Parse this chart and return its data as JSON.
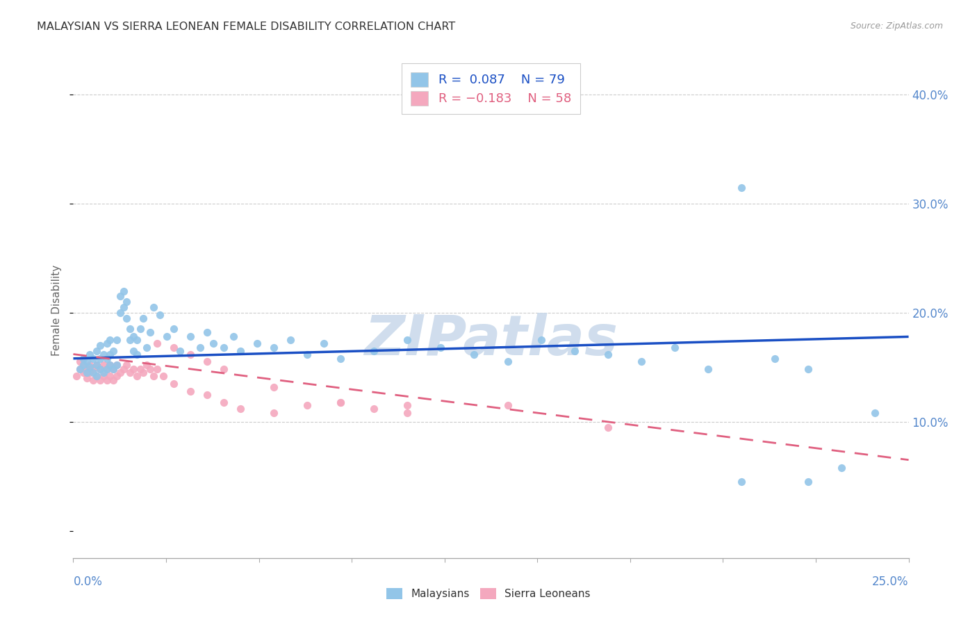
{
  "title": "MALAYSIAN VS SIERRA LEONEAN FEMALE DISABILITY CORRELATION CHART",
  "source": "Source: ZipAtlas.com",
  "ylabel": "Female Disability",
  "xlim": [
    0.0,
    0.25
  ],
  "ylim": [
    -0.025,
    0.43
  ],
  "blue_color": "#92C5E8",
  "pink_color": "#F4A8BE",
  "blue_line_color": "#1A4FC4",
  "pink_line_color": "#E06080",
  "grid_color": "#CCCCCC",
  "title_color": "#333333",
  "source_color": "#999999",
  "label_color": "#5588CC",
  "watermark_color": "#C8D8EA",
  "malaysians_x": [
    0.002,
    0.003,
    0.003,
    0.004,
    0.004,
    0.005,
    0.005,
    0.006,
    0.006,
    0.007,
    0.007,
    0.007,
    0.008,
    0.008,
    0.008,
    0.009,
    0.009,
    0.01,
    0.01,
    0.01,
    0.011,
    0.011,
    0.011,
    0.012,
    0.012,
    0.013,
    0.013,
    0.014,
    0.014,
    0.015,
    0.015,
    0.016,
    0.016,
    0.017,
    0.017,
    0.018,
    0.018,
    0.019,
    0.019,
    0.02,
    0.021,
    0.022,
    0.023,
    0.024,
    0.026,
    0.028,
    0.03,
    0.032,
    0.035,
    0.038,
    0.04,
    0.042,
    0.045,
    0.048,
    0.05,
    0.055,
    0.06,
    0.065,
    0.07,
    0.075,
    0.08,
    0.09,
    0.1,
    0.11,
    0.12,
    0.13,
    0.14,
    0.15,
    0.16,
    0.17,
    0.18,
    0.19,
    0.2,
    0.21,
    0.22,
    0.23,
    0.24,
    0.2,
    0.22
  ],
  "malaysians_y": [
    0.148,
    0.152,
    0.158,
    0.145,
    0.155,
    0.15,
    0.162,
    0.145,
    0.158,
    0.142,
    0.152,
    0.165,
    0.148,
    0.158,
    0.17,
    0.145,
    0.162,
    0.148,
    0.158,
    0.172,
    0.152,
    0.162,
    0.175,
    0.148,
    0.165,
    0.152,
    0.175,
    0.2,
    0.215,
    0.205,
    0.22,
    0.195,
    0.21,
    0.175,
    0.185,
    0.165,
    0.178,
    0.162,
    0.175,
    0.185,
    0.195,
    0.168,
    0.182,
    0.205,
    0.198,
    0.178,
    0.185,
    0.165,
    0.178,
    0.168,
    0.182,
    0.172,
    0.168,
    0.178,
    0.165,
    0.172,
    0.168,
    0.175,
    0.162,
    0.172,
    0.158,
    0.165,
    0.175,
    0.168,
    0.162,
    0.155,
    0.175,
    0.165,
    0.162,
    0.155,
    0.168,
    0.148,
    0.315,
    0.158,
    0.148,
    0.058,
    0.108,
    0.045,
    0.045
  ],
  "sierraleoneans_x": [
    0.001,
    0.002,
    0.002,
    0.003,
    0.003,
    0.004,
    0.004,
    0.005,
    0.005,
    0.006,
    0.006,
    0.007,
    0.007,
    0.008,
    0.008,
    0.009,
    0.009,
    0.01,
    0.01,
    0.011,
    0.011,
    0.012,
    0.012,
    0.013,
    0.013,
    0.014,
    0.015,
    0.016,
    0.017,
    0.018,
    0.019,
    0.02,
    0.021,
    0.022,
    0.023,
    0.024,
    0.025,
    0.027,
    0.03,
    0.035,
    0.04,
    0.045,
    0.05,
    0.06,
    0.07,
    0.08,
    0.09,
    0.1,
    0.13,
    0.16,
    0.025,
    0.03,
    0.035,
    0.04,
    0.045,
    0.06,
    0.08,
    0.1
  ],
  "sierraleoneans_y": [
    0.142,
    0.148,
    0.155,
    0.145,
    0.152,
    0.14,
    0.148,
    0.145,
    0.152,
    0.138,
    0.148,
    0.142,
    0.152,
    0.138,
    0.148,
    0.142,
    0.152,
    0.138,
    0.148,
    0.142,
    0.152,
    0.138,
    0.148,
    0.142,
    0.152,
    0.145,
    0.148,
    0.152,
    0.145,
    0.148,
    0.142,
    0.148,
    0.145,
    0.152,
    0.148,
    0.142,
    0.148,
    0.142,
    0.135,
    0.128,
    0.125,
    0.118,
    0.112,
    0.108,
    0.115,
    0.118,
    0.112,
    0.108,
    0.115,
    0.095,
    0.172,
    0.168,
    0.162,
    0.155,
    0.148,
    0.132,
    0.118,
    0.115
  ],
  "mal_trend_x0": 0.0,
  "mal_trend_y0": 0.158,
  "mal_trend_x1": 0.25,
  "mal_trend_y1": 0.178,
  "sl_trend_x0": 0.0,
  "sl_trend_y0": 0.162,
  "sl_trend_x1": 0.25,
  "sl_trend_y1": 0.065
}
